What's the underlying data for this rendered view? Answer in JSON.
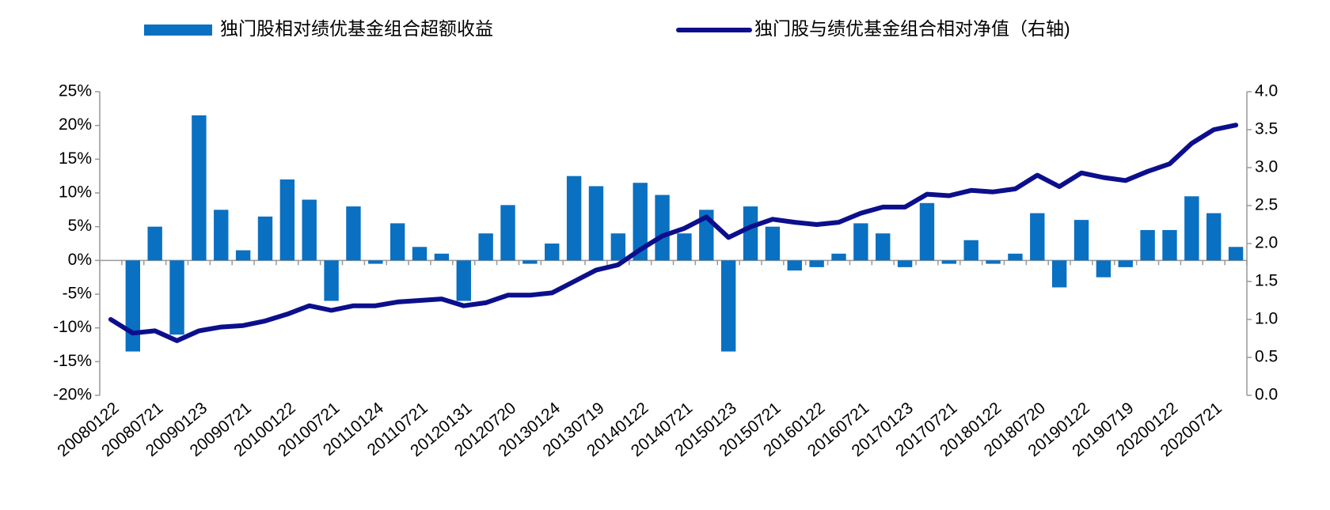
{
  "chart_data": {
    "type": "bar-line",
    "categories": [
      "20080122",
      null,
      "20080721",
      null,
      "20090123",
      null,
      "20090721",
      null,
      "20100122",
      null,
      "20100721",
      null,
      "20110124",
      null,
      "20110721",
      null,
      "20120131",
      null,
      "20120720",
      null,
      "20130124",
      null,
      "20130719",
      null,
      "20140122",
      null,
      "20140721",
      null,
      "20150123",
      null,
      "20150721",
      null,
      "20160122",
      null,
      "20160721",
      null,
      "20170123",
      null,
      "20170721",
      null,
      "20180122",
      null,
      "20180720",
      null,
      "20190122",
      null,
      "20190719",
      null,
      "20200122",
      null,
      "20200721",
      null
    ],
    "series": [
      {
        "name": "独门股相对绩优基金组合超额收益",
        "type": "bar",
        "color": "#0a70c2",
        "values": [
          0,
          -13.5,
          5,
          -11,
          21.5,
          7.5,
          1.5,
          6.5,
          12,
          9,
          -6,
          8,
          -0.5,
          5.5,
          2,
          1,
          -6,
          4,
          8.2,
          -0.5,
          2.5,
          12.5,
          11,
          4,
          11.5,
          9.7,
          4,
          7.5,
          -13.5,
          8,
          5,
          -1.5,
          -1,
          1,
          5.5,
          4,
          -1,
          8.5,
          -0.5,
          3,
          -0.5,
          1,
          7,
          -4,
          6,
          -2.5,
          -1,
          4.5,
          4.5,
          9.5,
          7,
          2
        ]
      },
      {
        "name": "独门股与绩优基金组合相对净值（右轴)",
        "type": "line",
        "axis": "y2",
        "color": "#0c0f8c",
        "values": [
          1.0,
          0.82,
          0.85,
          0.72,
          0.85,
          0.9,
          0.92,
          0.98,
          1.07,
          1.18,
          1.12,
          1.18,
          1.18,
          1.23,
          1.25,
          1.27,
          1.18,
          1.22,
          1.32,
          1.32,
          1.35,
          1.5,
          1.65,
          1.72,
          1.92,
          2.1,
          2.2,
          2.35,
          2.08,
          2.22,
          2.32,
          2.28,
          2.25,
          2.28,
          2.4,
          2.48,
          2.48,
          2.65,
          2.63,
          2.7,
          2.68,
          2.72,
          2.9,
          2.75,
          2.93,
          2.87,
          2.83,
          2.95,
          3.05,
          3.32,
          3.5,
          3.56
        ]
      }
    ],
    "ylim": [
      -20,
      25
    ],
    "yticks": [
      {
        "value": -20,
        "label": "-20%"
      },
      {
        "value": -15,
        "label": "-15%"
      },
      {
        "value": -10,
        "label": "-10%"
      },
      {
        "value": -5,
        "label": "-5%"
      },
      {
        "value": 0,
        "label": "0%"
      },
      {
        "value": 5,
        "label": "5%"
      },
      {
        "value": 10,
        "label": "10%"
      },
      {
        "value": 15,
        "label": "15%"
      },
      {
        "value": 20,
        "label": "20%"
      },
      {
        "value": 25,
        "label": "25%"
      }
    ],
    "y2lim": [
      0,
      4
    ],
    "y2ticks": [
      {
        "value": 0,
        "label": "0.0"
      },
      0.5,
      {
        "value": 1,
        "label": "1.0"
      },
      1.5,
      {
        "value": 2,
        "label": "2.0"
      },
      2.5,
      {
        "value": 3,
        "label": "3.0"
      },
      3.5,
      {
        "value": 4,
        "label": "4.0"
      }
    ],
    "legend": "top"
  }
}
